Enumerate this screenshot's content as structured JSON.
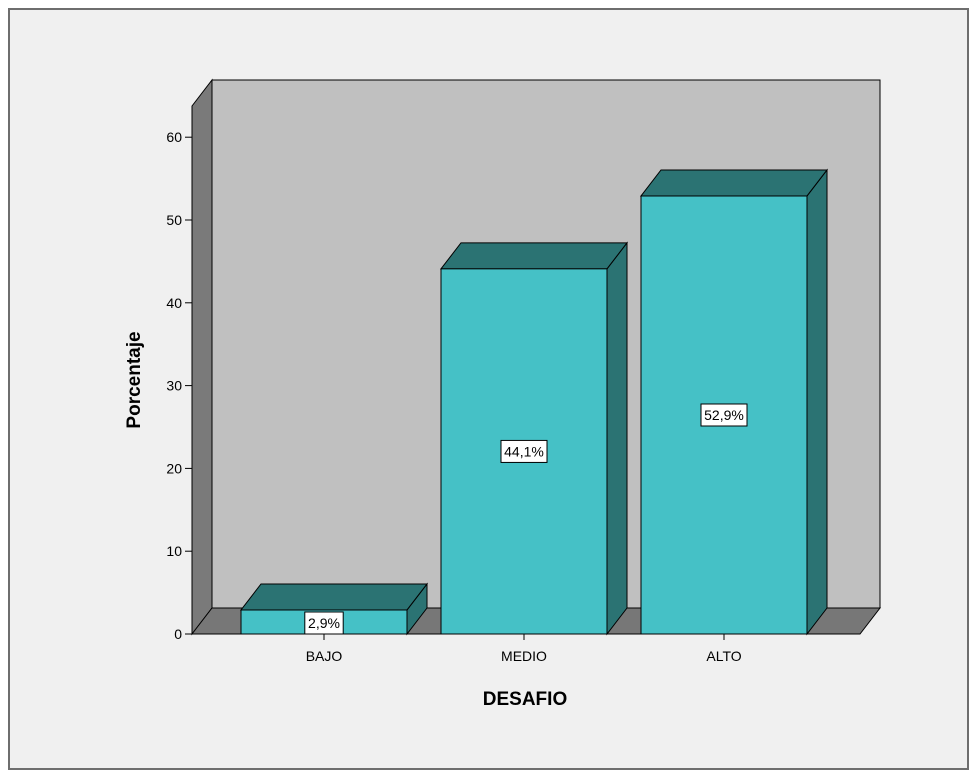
{
  "chart_data": {
    "type": "bar",
    "style": "3d",
    "categories": [
      "BAJO",
      "MEDIO",
      "ALTO"
    ],
    "values": [
      2.9,
      44.1,
      52.9
    ],
    "data_labels": [
      "2,9%",
      "44,1%",
      "52,9%"
    ],
    "xlabel": "DESAFIO",
    "ylabel": "Porcentaje",
    "ylim": [
      0,
      60
    ],
    "yticks": [
      0,
      10,
      20,
      30,
      40,
      50,
      60
    ],
    "grid": false,
    "legend": "none",
    "colors": {
      "bar_front": "#45c1c6",
      "bar_top": "#2b7373",
      "bar_side": "#2b7373",
      "wall": "#c0c0c0",
      "wall_left": "#7a7a7a",
      "floor": "#777777",
      "frame_bg": "#f0f0f0"
    }
  }
}
